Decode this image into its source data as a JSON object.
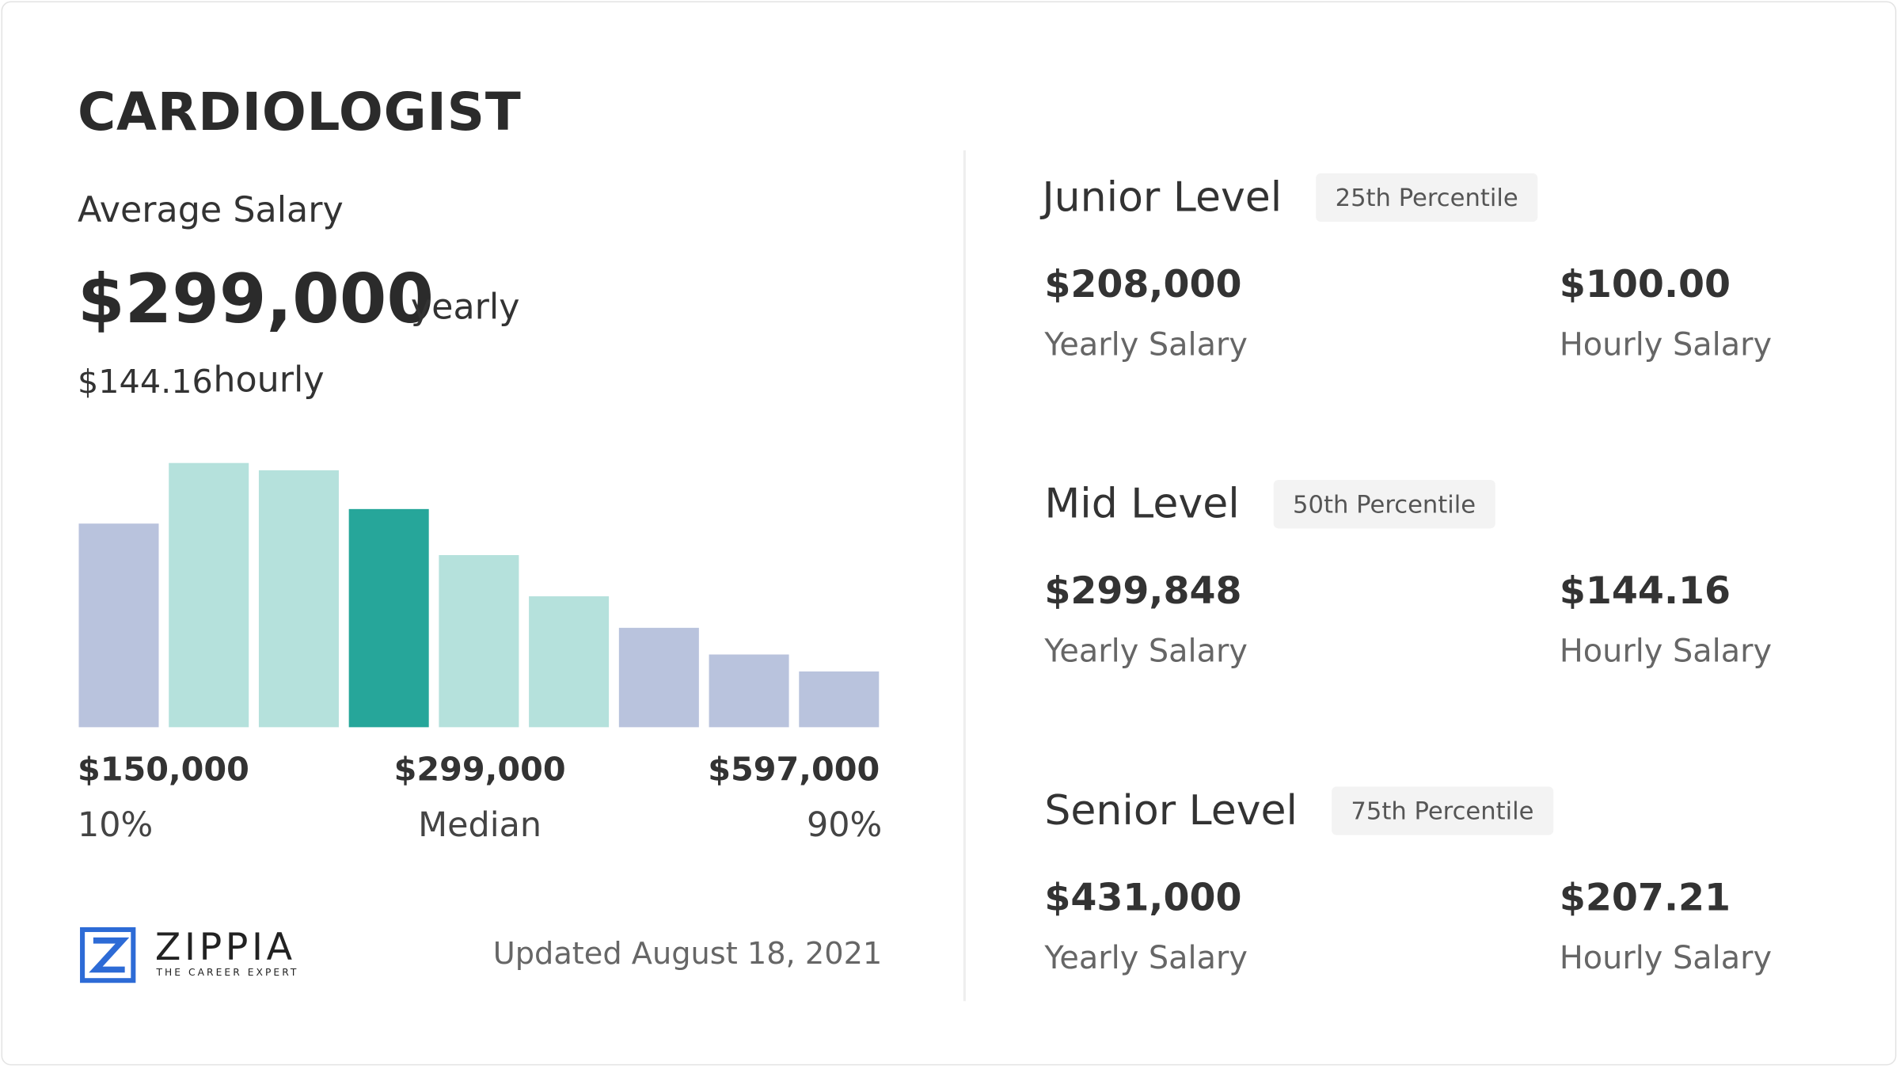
{
  "title": "CARDIOLOGIST",
  "average": {
    "label": "Average Salary",
    "yearly": "$299,000",
    "yearly_unit": "yearly",
    "hourly": "$144.16",
    "hourly_unit": "hourly"
  },
  "chart_data": {
    "type": "bar",
    "categories": [
      null,
      null,
      null,
      null,
      null,
      null,
      null,
      null,
      null
    ],
    "values": [
      168,
      218,
      212,
      180,
      142,
      108,
      82,
      60,
      46
    ],
    "colors": [
      "#b9c3dd",
      "#b5e1dc",
      "#b5e1dc",
      "#26a69a",
      "#b5e1dc",
      "#b5e1dc",
      "#b9c3dd",
      "#b9c3dd",
      "#b9c3dd"
    ]
  },
  "distribution": [
    {
      "amount": "$150,000",
      "label": "10%"
    },
    {
      "amount": "$299,000",
      "label": "Median"
    },
    {
      "amount": "$597,000",
      "label": "90%"
    }
  ],
  "footer": {
    "brand": "ZIPPIA",
    "tagline": "THE CAREER EXPERT",
    "updated": "Updated August 18, 2021"
  },
  "levels": [
    {
      "title": "Junior Level",
      "percentile": "25th Percentile",
      "yearly": "$208,000",
      "yearly_label": "Yearly Salary",
      "hourly": "$100.00",
      "hourly_label": "Hourly Salary"
    },
    {
      "title": "Mid Level",
      "percentile": "50th Percentile",
      "yearly": "$299,848",
      "yearly_label": "Yearly Salary",
      "hourly": "$144.16",
      "hourly_label": "Hourly Salary"
    },
    {
      "title": "Senior Level",
      "percentile": "75th Percentile",
      "yearly": "$431,000",
      "yearly_label": "Yearly Salary",
      "hourly": "$207.21",
      "hourly_label": "Hourly Salary"
    }
  ]
}
